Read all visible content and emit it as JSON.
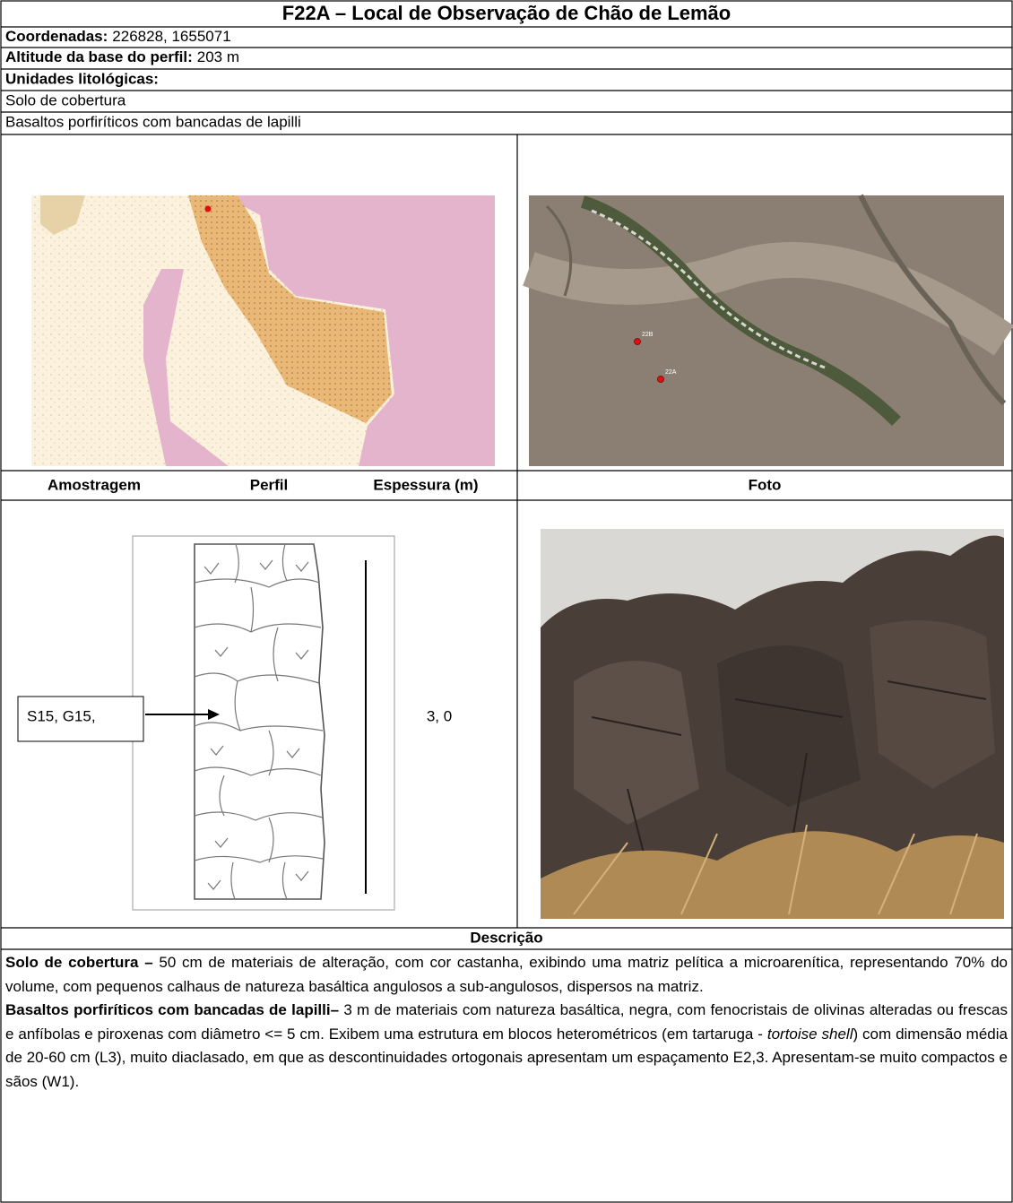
{
  "header": {
    "title": "F22A – Local de Observação de Chão de Lemão"
  },
  "info": {
    "coordinates": {
      "label": "Coordenadas:",
      "value": "226828, 1655071"
    },
    "altitude": {
      "label": "Altitude da base do perfil:",
      "value": "203 m"
    },
    "units_label": "Unidades litológicas:",
    "units": [
      "Solo de cobertura",
      "Basaltos porfiríticos com bancadas de lapilli"
    ]
  },
  "aerial": {
    "points": [
      "22B",
      "22A"
    ]
  },
  "columns": {
    "sampling": "Amostragem",
    "profile": "Perfil",
    "thickness": "Espessura (m)",
    "photo": "Foto"
  },
  "profile": {
    "sample_label": "S15, G15,",
    "thickness": "3, 0"
  },
  "description": {
    "title": "Descrição",
    "paragraphs": [
      [
        {
          "text": "Solo de cobertura –",
          "style": "bold"
        },
        {
          "text": " 50 cm de materiais de alteração, com cor castanha, exibindo uma matriz pelítica a microarenítica, representando 70% do volume, com pequenos calhaus de natureza basáltica angulosos a sub-angulosos, dispersos na matriz.",
          "style": "normal"
        }
      ],
      [
        {
          "text": "Basaltos porfiríticos com bancadas de lapilli–",
          "style": "bold"
        },
        {
          "text": " 3 m de materiais com natureza basáltica, negra, com fenocristais de olivinas alteradas ou frescas e anfíbolas e piroxenas com diâmetro <= 5 cm. Exibem uma estrutura em blocos heterométricos (em tartaruga - ",
          "style": "normal"
        },
        {
          "text": "tortoise shell",
          "style": "italic"
        },
        {
          "text": ") com dimensão média de 20-60 cm (L3), muito diaclasado, em que as descontinuidades ortogonais apresentam um espaçamento E2,3. Apresentam-se muito compactos e sãos (W1).",
          "style": "normal"
        }
      ]
    ]
  }
}
